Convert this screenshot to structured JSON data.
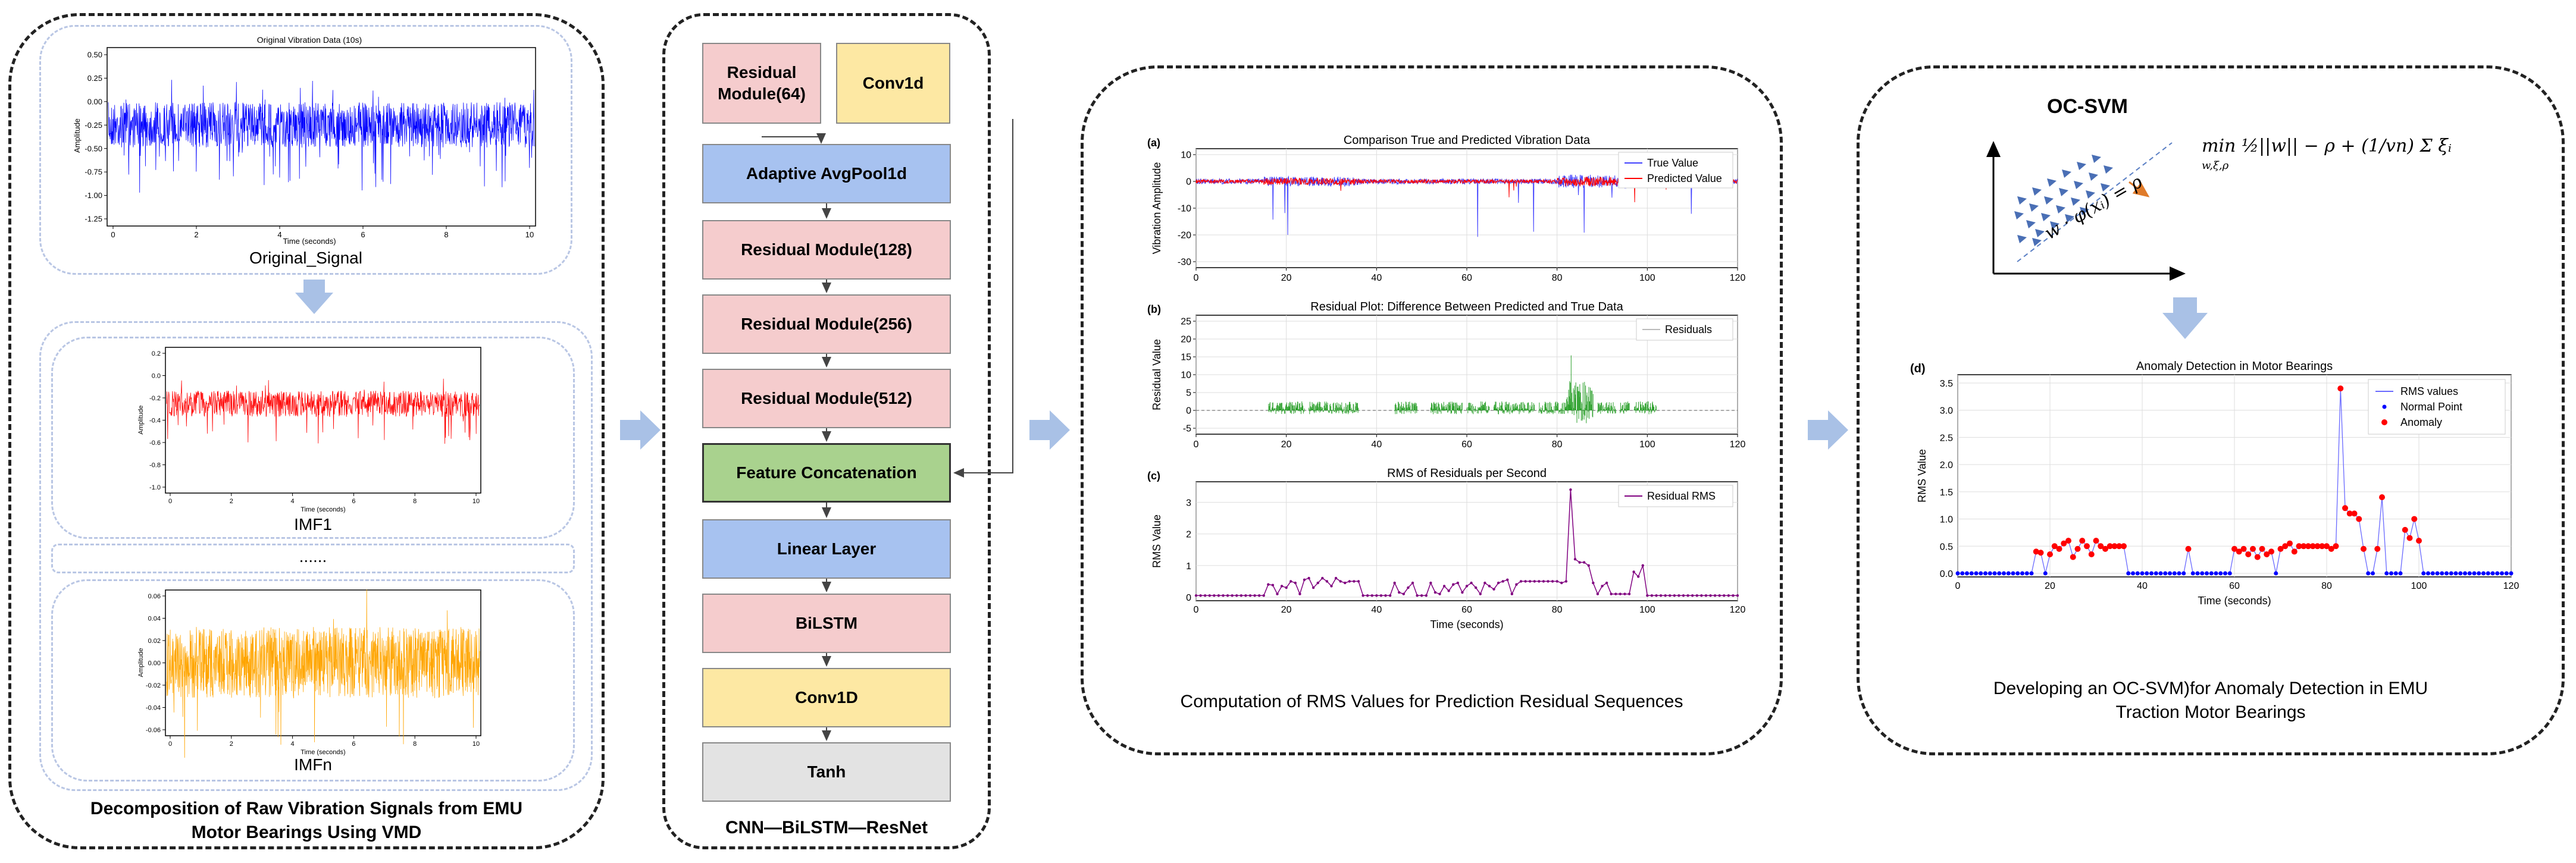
{
  "panel1": {
    "caption_line1": "Decomposition of Raw Vibration Signals from EMU",
    "caption_line2": "Motor Bearings Using VMD",
    "original": {
      "plot_title": "Original Vibration Data (10s)",
      "xlabel": "Time (seconds)",
      "ylabel": "Amplitude",
      "yticks": [
        "0.50",
        "0.25",
        "0.00",
        "-0.25",
        "-0.50",
        "-0.75",
        "-1.00",
        "-1.25"
      ],
      "xticks": [
        "0",
        "2",
        "4",
        "6",
        "8",
        "10"
      ],
      "label": "Original_Signal",
      "color": "#0000ff"
    },
    "imf1": {
      "xlabel": "Time (seconds)",
      "ylabel": "Amplitude",
      "yticks": [
        "0.2",
        "0.0",
        "-0.2",
        "-0.4",
        "-0.6",
        "-0.8",
        "-1.0"
      ],
      "xticks": [
        "0",
        "2",
        "4",
        "6",
        "8",
        "10"
      ],
      "label": "IMF1",
      "color": "#ff0000"
    },
    "dots": "......",
    "imfn": {
      "xlabel": "Time (seconds)",
      "ylabel": "Amplitude",
      "yticks": [
        "0.06",
        "0.04",
        "0.02",
        "0.00",
        "-0.02",
        "-0.04",
        "-0.06"
      ],
      "xticks": [
        "0",
        "2",
        "4",
        "6",
        "8",
        "10"
      ],
      "label": "IMFn",
      "color": "#ffa500"
    }
  },
  "panel2": {
    "caption": "CNN—BiLSTM—ResNet",
    "residual64": "Residual Module(64)",
    "conv1d_top": "Conv1d",
    "adaptive": "Adaptive AvgPool1d",
    "residual128": "Residual Module(128)",
    "residual256": "Residual Module(256)",
    "residual512": "Residual Module(512)",
    "feature_concat": "Feature Concatenation",
    "linear": "Linear Layer",
    "bilstm": "BiLSTM",
    "conv1d_bottom": "Conv1D",
    "tanh": "Tanh"
  },
  "panel3": {
    "caption": "Computation of RMS Values for Prediction Residual Sequences",
    "plot_a": {
      "tag": "(a)",
      "title": "Comparison True and Predicted Vibration Data",
      "ylabel": "Vibration Amplitude",
      "yticks": [
        "10",
        "0",
        "-10",
        "-20",
        "-30"
      ],
      "xticks": [
        "0",
        "20",
        "40",
        "60",
        "80",
        "100",
        "120"
      ],
      "legend": [
        "True Value",
        "Predicted Value"
      ],
      "colors": [
        "#4040ff",
        "#ff0000"
      ]
    },
    "plot_b": {
      "tag": "(b)",
      "title": "Residual Plot: Difference Between Predicted and True Data",
      "ylabel": "Residual Value",
      "yticks": [
        "25",
        "20",
        "15",
        "10",
        "5",
        "0",
        "-5"
      ],
      "xticks": [
        "0",
        "20",
        "40",
        "60",
        "80",
        "100",
        "120"
      ],
      "legend": [
        "Residuals"
      ],
      "color": "#2ca02c"
    },
    "plot_c": {
      "tag": "(c)",
      "title": "RMS of Residuals per Second",
      "ylabel": "RMS Value",
      "xlabel": "Time (seconds)",
      "yticks": [
        "3",
        "2",
        "1",
        "0"
      ],
      "xticks": [
        "0",
        "20",
        "40",
        "60",
        "80",
        "100",
        "120"
      ],
      "legend": [
        "Residual RMS"
      ],
      "color": "#800080"
    }
  },
  "panel4": {
    "title": "OC-SVM",
    "hyperplane": "w · φ(xᵢ) = ρ",
    "objective": "min  ½||w|| − ρ + (1/vn) Σ ξᵢ",
    "objective_sub": "w,ξ,ρ",
    "caption_line1": "Developing an OC-SVM)for Anomaly Detection in EMU",
    "caption_line2": "Traction Motor Bearings",
    "plot_d": {
      "tag": "(d)",
      "title": "Anomaly Detection in Motor Bearings",
      "ylabel": "RMS Value",
      "xlabel": "Time (seconds)",
      "yticks": [
        "3.5",
        "3.0",
        "2.5",
        "2.0",
        "1.5",
        "1.0",
        "0.5",
        "0.0"
      ],
      "xticks": [
        "0",
        "20",
        "40",
        "60",
        "80",
        "100",
        "120"
      ],
      "legend": [
        "RMS values",
        "Normal Point",
        "Anomaly"
      ],
      "colors": [
        "#6a6aff",
        "#0000ff",
        "#ff0000"
      ]
    }
  },
  "chart_data": [
    {
      "type": "line",
      "name_ref": "plot_c",
      "title": "RMS of Residuals per Second",
      "xlabel": "Time (seconds)",
      "ylabel": "RMS Value",
      "xlim": [
        0,
        120
      ],
      "ylim": [
        0,
        3.5
      ],
      "series": [
        {
          "name": "Residual RMS",
          "x": [
            16,
            17,
            18,
            19,
            20,
            21,
            22,
            23,
            24,
            25,
            26,
            27,
            28,
            29,
            30,
            31,
            32,
            33,
            34,
            35,
            36,
            44,
            45,
            46,
            47,
            48,
            52,
            53,
            54,
            55,
            56,
            57,
            58,
            59,
            60,
            61,
            62,
            63,
            64,
            65,
            66,
            67,
            68,
            69,
            70,
            71,
            72,
            73,
            74,
            75,
            76,
            77,
            78,
            79,
            80,
            81,
            82,
            83,
            84,
            85,
            86,
            87,
            88,
            89,
            90,
            91,
            92,
            93,
            94,
            95,
            96,
            97,
            98,
            99,
            100,
            101,
            102
          ],
          "y": [
            0.4,
            0.38,
            0.1,
            0.35,
            0.3,
            0.5,
            0.45,
            0.1,
            0.55,
            0.6,
            0.3,
            0.45,
            0.6,
            0.5,
            0.35,
            0.6,
            0.5,
            0.45,
            0.5,
            0.5,
            0.5,
            0.45,
            0.15,
            0.1,
            0.3,
            0.45,
            0.45,
            0.15,
            0.1,
            0.35,
            0.2,
            0.4,
            0.45,
            0.15,
            0.35,
            0.45,
            0.3,
            0.1,
            0.45,
            0.35,
            0.25,
            0.45,
            0.5,
            0.55,
            0.1,
            0.4,
            0.5,
            0.5,
            0.5,
            0.5,
            0.5,
            0.5,
            0.5,
            0.5,
            0.5,
            0.45,
            0.5,
            3.4,
            1.2,
            1.1,
            1.1,
            1.0,
            0.45,
            0.1,
            0.35,
            0.45,
            0.1,
            0.1,
            0.1,
            0.1,
            0.1,
            0.8,
            0.65,
            1.0,
            0.05,
            0.05,
            0.05
          ]
        }
      ]
    },
    {
      "type": "scatter",
      "name_ref": "plot_d",
      "title": "Anomaly Detection in Motor Bearings",
      "xlabel": "Time (seconds)",
      "ylabel": "RMS Value",
      "xlim": [
        0,
        120
      ],
      "ylim": [
        0,
        3.5
      ],
      "series": [
        {
          "name": "Anomaly",
          "x": [
            17,
            18,
            20,
            21,
            22,
            23,
            24,
            25,
            26,
            27,
            28,
            29,
            30,
            31,
            32,
            33,
            34,
            35,
            36,
            50,
            60,
            61,
            62,
            63,
            64,
            65,
            66,
            67,
            68,
            70,
            71,
            72,
            73,
            74,
            75,
            76,
            77,
            78,
            79,
            80,
            81,
            82,
            83,
            84,
            85,
            86,
            87,
            88,
            91,
            92,
            97,
            98,
            99,
            100
          ],
          "y": [
            0.4,
            0.38,
            0.35,
            0.5,
            0.45,
            0.55,
            0.6,
            0.3,
            0.45,
            0.6,
            0.5,
            0.35,
            0.6,
            0.5,
            0.45,
            0.5,
            0.5,
            0.5,
            0.5,
            0.45,
            0.45,
            0.4,
            0.45,
            0.35,
            0.45,
            0.3,
            0.45,
            0.35,
            0.4,
            0.45,
            0.5,
            0.55,
            0.4,
            0.5,
            0.5,
            0.5,
            0.5,
            0.5,
            0.5,
            0.5,
            0.45,
            0.5,
            3.4,
            1.2,
            1.1,
            1.1,
            1.0,
            0.45,
            0.45,
            1.4,
            0.8,
            0.65,
            1.0,
            0.6
          ]
        }
      ]
    }
  ]
}
